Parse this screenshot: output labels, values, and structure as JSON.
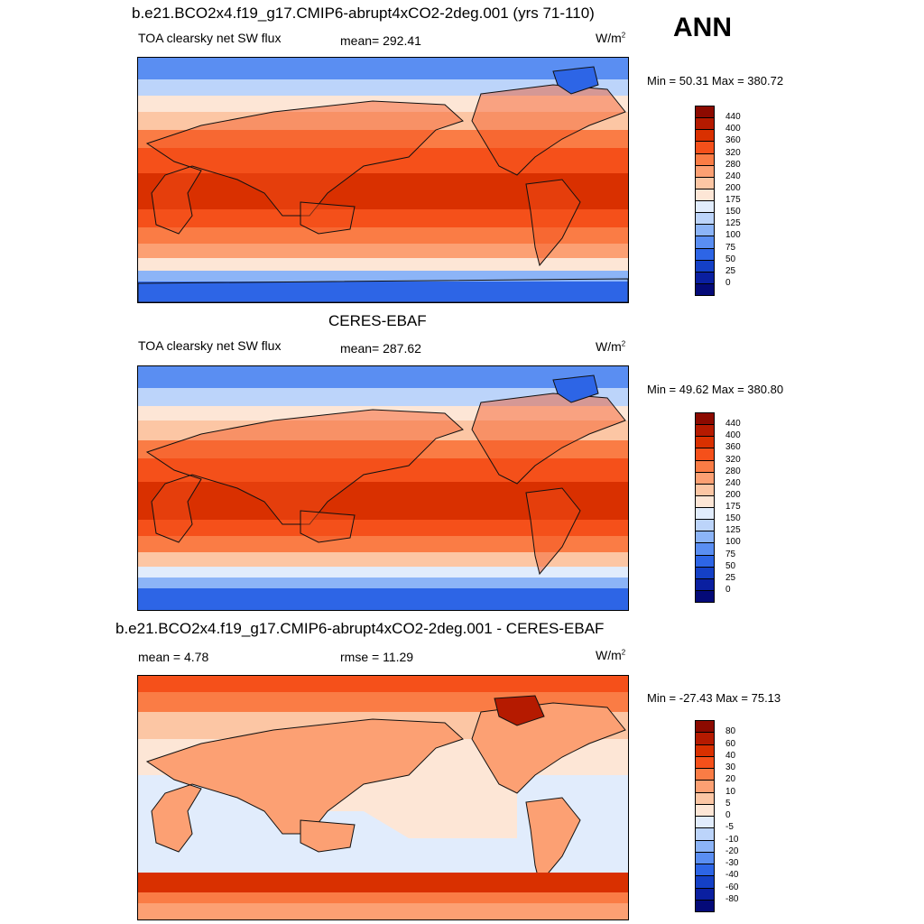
{
  "season": "ANN",
  "units_base": "W/m",
  "units_exp": "2",
  "panels": [
    {
      "id": "model",
      "title": "b.e21.BCO2x4.f19_g17.CMIP6-abrupt4xCO2-2deg.001 (yrs 71-110)",
      "left_text": "TOA clearsky net SW flux",
      "center_text": "mean= 292.41",
      "minmax": "Min =  50.31 Max = 380.72"
    },
    {
      "id": "obs",
      "title": "CERES-EBAF",
      "left_text": "TOA clearsky net SW flux",
      "center_text": "mean= 287.62",
      "minmax": "Min =  49.62 Max = 380.80"
    },
    {
      "id": "diff",
      "title": "b.e21.BCO2x4.f19_g17.CMIP6-abrupt4xCO2-2deg.001 - CERES-EBAF",
      "left_text": "mean =   4.78",
      "center_text": "rmse =  11.29",
      "minmax": "Min = -27.43 Max =  75.13"
    }
  ],
  "colorbars": {
    "abs": {
      "labels": [
        "440",
        "400",
        "360",
        "320",
        "280",
        "240",
        "200",
        "175",
        "150",
        "125",
        "100",
        "75",
        "50",
        "25",
        "0"
      ],
      "colors": [
        "#8c0a00",
        "#b51a00",
        "#d93000",
        "#f5501a",
        "#fa7c45",
        "#fca073",
        "#fcc6a4",
        "#fde6d6",
        "#e1ecfc",
        "#bcd4fa",
        "#8cb4f7",
        "#5a8ef2",
        "#2d65e6",
        "#1440c6",
        "#0a1fa0",
        "#040a78"
      ]
    },
    "diff": {
      "labels": [
        "80",
        "60",
        "40",
        "30",
        "20",
        "10",
        "5",
        "0",
        "-5",
        "-10",
        "-20",
        "-30",
        "-40",
        "-60",
        "-80"
      ],
      "colors": [
        "#8c0a00",
        "#b51a00",
        "#d93000",
        "#f5501a",
        "#fa7c45",
        "#fca073",
        "#fcc6a4",
        "#fde6d6",
        "#e1ecfc",
        "#bcd4fa",
        "#8cb4f7",
        "#5a8ef2",
        "#2d65e6",
        "#1440c6",
        "#0a1fa0",
        "#040a78"
      ]
    }
  }
}
